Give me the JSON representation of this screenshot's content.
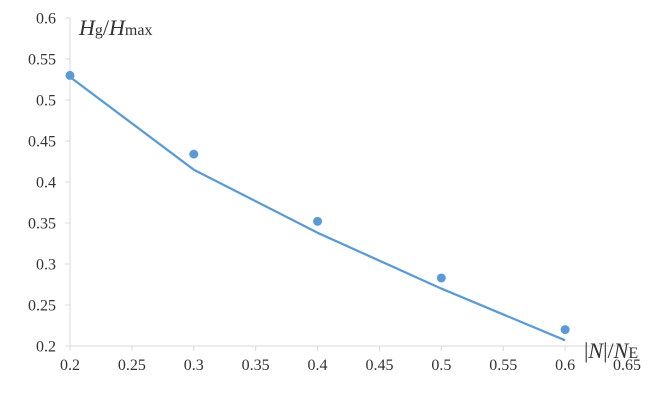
{
  "chart_data": {
    "type": "scatter",
    "title": "",
    "xlabel": "|N|/NE",
    "ylabel": "Hg/Hmax",
    "xlim": [
      0.2,
      0.65
    ],
    "ylim": [
      0.2,
      0.6
    ],
    "x_ticks": [
      "0.2",
      "0.25",
      "0.3",
      "0.35",
      "0.4",
      "0.45",
      "0.5",
      "0.55",
      "0.6",
      "0.65"
    ],
    "y_ticks": [
      "0.2",
      "0.25",
      "0.3",
      "0.35",
      "0.4",
      "0.45",
      "0.5",
      "0.55",
      "0.6"
    ],
    "grid": false,
    "legend": "none",
    "series": [
      {
        "kind": "scatter",
        "color": "#5b9bd5",
        "points": [
          {
            "x": 0.2,
            "y": 0.53
          },
          {
            "x": 0.3,
            "y": 0.434
          },
          {
            "x": 0.4,
            "y": 0.352
          },
          {
            "x": 0.5,
            "y": 0.283
          },
          {
            "x": 0.6,
            "y": 0.22
          }
        ]
      },
      {
        "kind": "line",
        "color": "#5b9bd5",
        "points": [
          {
            "x": 0.2,
            "y": 0.528
          },
          {
            "x": 0.3,
            "y": 0.415
          },
          {
            "x": 0.4,
            "y": 0.338
          },
          {
            "x": 0.5,
            "y": 0.27
          },
          {
            "x": 0.6,
            "y": 0.207
          }
        ]
      }
    ],
    "axis_labels": {
      "y": {
        "italic1": "H",
        "sub1": "g",
        "slash": "/",
        "italic2": "H",
        "sub2": "max"
      },
      "x": {
        "bar1": "|",
        "italic1": "N",
        "bar2": "|",
        "slash": "/",
        "italic2": "N",
        "sub2": "E"
      }
    },
    "axis_color": "#d9d9d9"
  }
}
